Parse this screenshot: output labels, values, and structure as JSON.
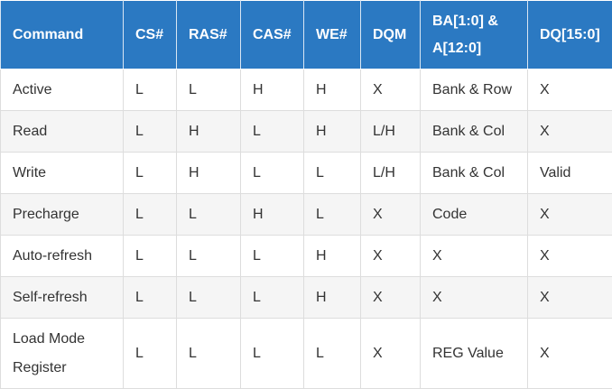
{
  "table": {
    "headers": [
      "Command",
      "CS#",
      "RAS#",
      "CAS#",
      "WE#",
      "DQM",
      "BA[1:0] & A[12:0]",
      "DQ[15:0]"
    ],
    "rows": [
      [
        "Active",
        "L",
        "L",
        "H",
        "H",
        "X",
        "Bank & Row",
        "X"
      ],
      [
        "Read",
        "L",
        "H",
        "L",
        "H",
        "L/H",
        "Bank & Col",
        "X"
      ],
      [
        "Write",
        "L",
        "H",
        "L",
        "L",
        "L/H",
        "Bank & Col",
        "Valid"
      ],
      [
        "Precharge",
        "L",
        "L",
        "H",
        "L",
        "X",
        "Code",
        "X"
      ],
      [
        "Auto-refresh",
        "L",
        "L",
        "L",
        "H",
        "X",
        "X",
        "X"
      ],
      [
        "Self-refresh",
        "L",
        "L",
        "L",
        "H",
        "X",
        "X",
        "X"
      ],
      [
        "Load Mode Register",
        "L",
        "L",
        "L",
        "L",
        "X",
        "REG Value",
        "X"
      ]
    ]
  },
  "colors": {
    "header_background": "#2b79c2",
    "header_text": "#ffffff",
    "stripe": "#f5f5f5"
  }
}
